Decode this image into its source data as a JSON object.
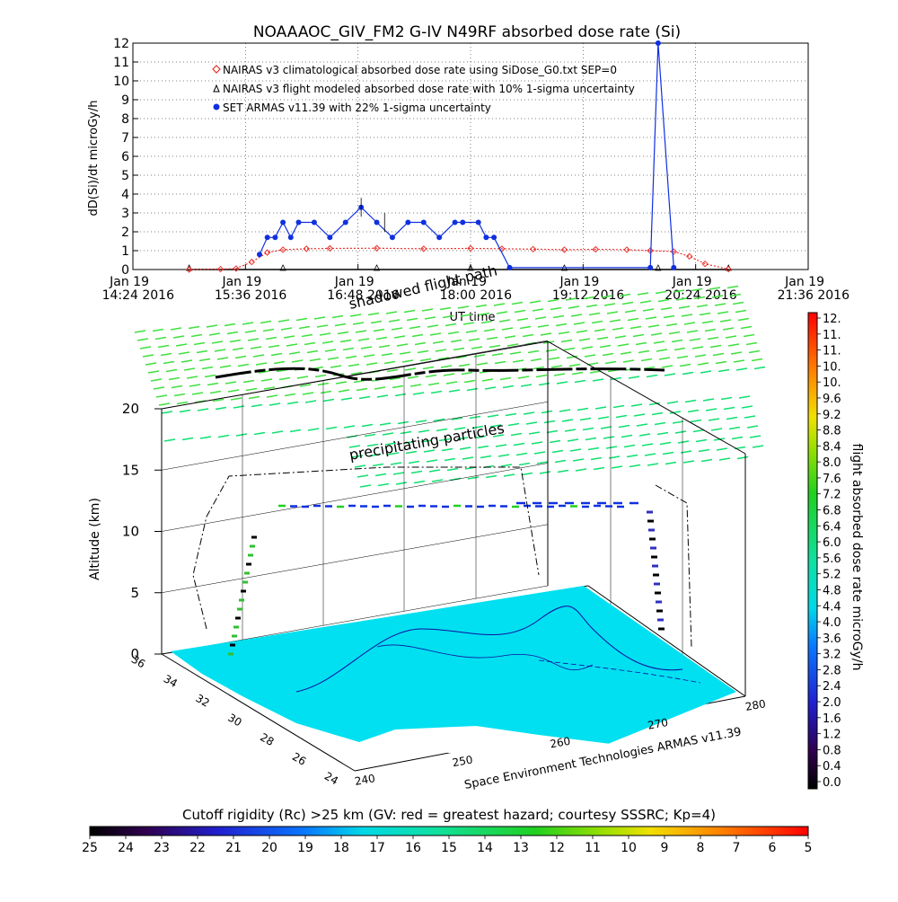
{
  "title": "NOAAAOC_GIV_FM2 G-IV    N49RF   absorbed dose rate (Si)",
  "chart_data": [
    {
      "type": "line",
      "ylabel": "dD(Si)/dt microGy/h",
      "xlabel": "UT time",
      "ylim": [
        0,
        12
      ],
      "yticks": [
        0,
        1,
        2,
        3,
        4,
        5,
        6,
        7,
        8,
        9,
        10,
        11,
        12
      ],
      "xticks": [
        {
          "date": "Jan 19",
          "time": "14:24 2016"
        },
        {
          "date": "Jan 19",
          "time": "15:36 2016"
        },
        {
          "date": "Jan 19",
          "time": "16:48 2016"
        },
        {
          "date": "Jan 19",
          "time": "18:00 2016"
        },
        {
          "date": "Jan 19",
          "time": "19:12 2016"
        },
        {
          "date": "Jan 19",
          "time": "20:24 2016"
        },
        {
          "date": "Jan 19",
          "time": "21:36 2016"
        }
      ],
      "xlim": [
        "14:24",
        "21:36"
      ],
      "legend_position": "top-left",
      "legend": [
        {
          "label": "NAIRAS v3 climatological absorbed dose rate using SiDose_G0.txt SEP=0",
          "color": "#e8302a",
          "marker": "diamond"
        },
        {
          "label": "NAIRAS v3 flight modeled absorbed dose rate with 10% 1-sigma uncertainty",
          "color": "#000000",
          "marker": "triangle"
        },
        {
          "label": "SET ARMAS v11.39 with 22% 1-sigma uncertainty",
          "color": "#1030e0",
          "marker": "circle"
        }
      ],
      "series": [
        {
          "name": "NAIRAS v3 climatological absorbed dose rate using SiDose_G0.txt SEP=0",
          "x": [
            "15:00",
            "15:20",
            "15:30",
            "15:40",
            "15:50",
            "16:00",
            "16:15",
            "16:30",
            "17:00",
            "17:30",
            "18:00",
            "18:20",
            "18:40",
            "19:00",
            "19:20",
            "19:40",
            "19:55",
            "20:10",
            "20:20",
            "20:30",
            "20:45"
          ],
          "y": [
            0,
            0.02,
            0.05,
            0.4,
            0.9,
            1.05,
            1.1,
            1.12,
            1.13,
            1.1,
            1.12,
            1.1,
            1.08,
            1.05,
            1.07,
            1.05,
            1.0,
            0.95,
            0.7,
            0.3,
            0.02
          ]
        },
        {
          "name": "NAIRAS v3 flight modeled absorbed dose rate with 10% 1-sigma uncertainty",
          "x": [
            "15:00",
            "16:00",
            "17:00",
            "18:00",
            "19:00",
            "20:00",
            "20:45"
          ],
          "y": [
            0,
            0,
            0,
            0,
            0,
            0,
            0
          ]
        },
        {
          "name": "SET ARMAS v11.39 with 22% 1-sigma uncertainty",
          "x": [
            "15:45",
            "15:50",
            "15:55",
            "16:00",
            "16:05",
            "16:10",
            "16:20",
            "16:30",
            "16:40",
            "16:50",
            "17:00",
            "17:10",
            "17:20",
            "17:30",
            "17:40",
            "17:50",
            "17:55",
            "18:05",
            "18:10",
            "18:15",
            "18:25",
            "19:55",
            "20:00",
            "20:10"
          ],
          "y": [
            0.8,
            1.7,
            1.7,
            2.5,
            1.7,
            2.5,
            2.5,
            1.7,
            2.5,
            3.3,
            2.5,
            1.7,
            2.5,
            2.5,
            1.7,
            2.5,
            2.5,
            2.5,
            1.7,
            1.7,
            0.1,
            0.1,
            12,
            0.1
          ]
        }
      ]
    },
    {
      "type": "scatter",
      "annotations": [
        "shadowed flight path",
        "precipitating particles",
        "Space Environment Technologies ARMAS v11.39"
      ],
      "zlabel": "Altitude (km)",
      "zticks": [
        0,
        5,
        10,
        15,
        20
      ],
      "lat_ticks": [
        24,
        26,
        28,
        30,
        32,
        34,
        36
      ],
      "lon_ticks": [
        240,
        250,
        260,
        270,
        280
      ],
      "colorbar": {
        "label": "flight absorbed dose rate microGy/h",
        "ticks": [
          "12.",
          "11.",
          "11.",
          "10.",
          "10.",
          "9.6",
          "9.2",
          "8.8",
          "8.4",
          "8.0",
          "7.6",
          "7.2",
          "6.8",
          "6.4",
          "6.0",
          "5.6",
          "5.2",
          "4.8",
          "4.4",
          "4.0",
          "3.6",
          "3.2",
          "2.8",
          "2.4",
          "2.0",
          "1.6",
          "1.2",
          "0.8",
          "0.4",
          "0.0"
        ]
      },
      "rigidity_bar": {
        "label": "Cutoff rigidity (Rc) >25 km (GV: red = greatest hazard; courtesy SSSRC; Kp=4)",
        "ticks": [
          "25",
          "24",
          "23",
          "22",
          "21",
          "20",
          "19",
          "18",
          "17",
          "16",
          "15",
          "14",
          "13",
          "12",
          "11",
          "10",
          "9",
          "8",
          "7",
          "6",
          "5"
        ]
      }
    }
  ]
}
